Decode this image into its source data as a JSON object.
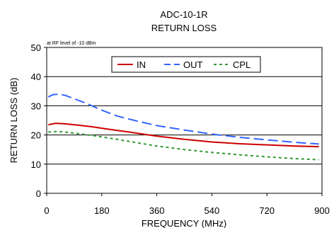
{
  "chart_data": {
    "type": "line",
    "title": "ADC-10-1R",
    "subtitle": "RETURN LOSS",
    "annotation": "at RF level of -10 dBm",
    "xlabel": "FREQUENCY (MHz)",
    "ylabel": "RETURN LOSS (dB)",
    "xlim": [
      0,
      900
    ],
    "ylim": [
      0,
      50
    ],
    "xticks": [
      0,
      180,
      360,
      540,
      720,
      900
    ],
    "yticks": [
      0,
      10,
      20,
      30,
      40,
      50
    ],
    "grid": "horizontal",
    "legend_position": "top-right",
    "series": [
      {
        "name": "IN",
        "color": "#cc0000",
        "dash": "solid",
        "x": [
          5,
          30,
          60,
          100,
          150,
          200,
          270,
          360,
          450,
          540,
          630,
          720,
          810,
          890
        ],
        "y": [
          23.5,
          24,
          23.8,
          23.4,
          22.8,
          22,
          21,
          19.6,
          18.5,
          17.6,
          17,
          16.6,
          16.2,
          16
        ]
      },
      {
        "name": "OUT",
        "color": "#3366ff",
        "dash": "long-dash",
        "x": [
          5,
          20,
          40,
          60,
          90,
          130,
          180,
          230,
          290,
          360,
          450,
          540,
          630,
          720,
          810,
          890
        ],
        "y": [
          33,
          33.8,
          34,
          33.6,
          32.4,
          30.8,
          28.5,
          26.5,
          24.9,
          23.2,
          21.7,
          20.3,
          19.2,
          18.3,
          17.5,
          16.9
        ]
      },
      {
        "name": "CPL",
        "color": "#339933",
        "dash": "dotted",
        "x": [
          5,
          30,
          60,
          100,
          150,
          200,
          270,
          360,
          450,
          540,
          630,
          720,
          810,
          890
        ],
        "y": [
          21,
          21.2,
          21,
          20.5,
          19.8,
          19,
          17.8,
          16.2,
          15,
          14,
          13.2,
          12.5,
          11.9,
          11.5
        ]
      }
    ]
  }
}
